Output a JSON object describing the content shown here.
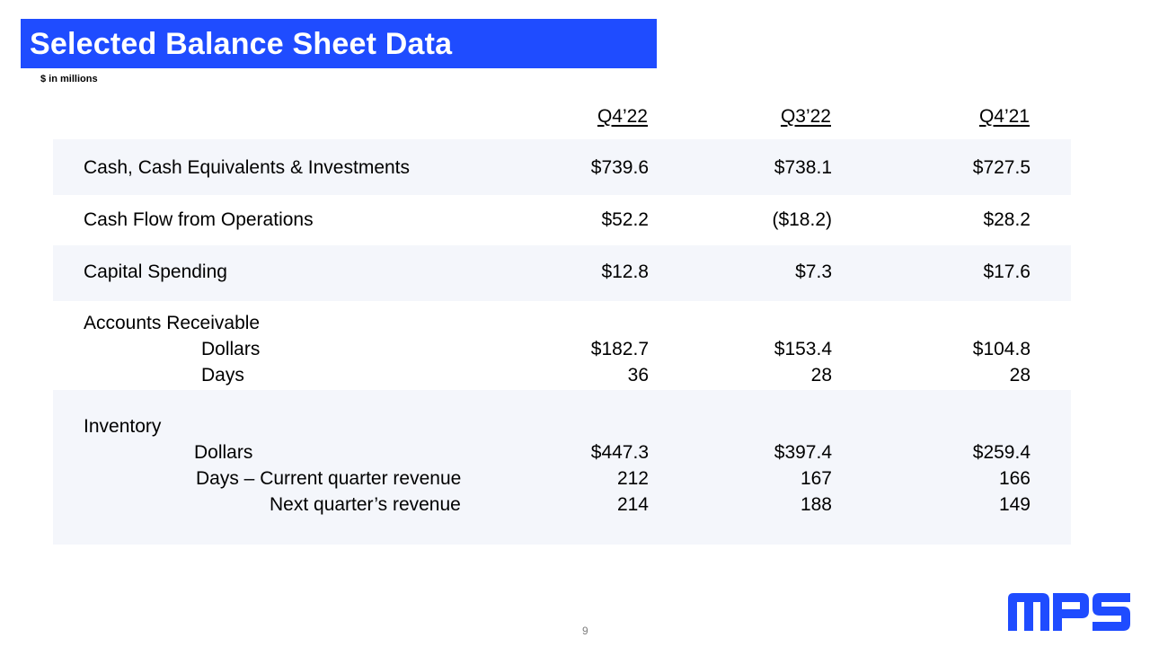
{
  "header": {
    "title": "Selected Balance Sheet Data",
    "subtitle": "$ in millions"
  },
  "columns": [
    "Q4’22",
    "Q3’22",
    "Q4’21"
  ],
  "rows": {
    "cash": {
      "label": "Cash, Cash Equivalents & Investments",
      "values": [
        "$739.6",
        "$738.1",
        "$727.5"
      ]
    },
    "cash_flow": {
      "label": "Cash Flow from Operations",
      "values": [
        "$52.2",
        "($18.2)",
        "$28.2"
      ]
    },
    "capex": {
      "label": "Capital Spending",
      "values": [
        "$12.8",
        "$7.3",
        "$17.6"
      ]
    },
    "ar": {
      "label": "Accounts Receivable",
      "dollars_label": "Dollars",
      "dollars": [
        "$182.7",
        "$153.4",
        "$104.8"
      ],
      "days_label": "Days",
      "days": [
        "36",
        "28",
        "28"
      ]
    },
    "inventory": {
      "label": "Inventory",
      "dollars_label": "Dollars",
      "dollars": [
        "$447.3",
        "$397.4",
        "$259.4"
      ],
      "days_current_label": "Days – Current quarter revenue",
      "days_current": [
        "212",
        "167",
        "166"
      ],
      "days_next_label": "Next quarter’s revenue",
      "days_next": [
        "214",
        "188",
        "149"
      ]
    }
  },
  "footer": {
    "page_number": "9",
    "logo_text": "MPS"
  },
  "colors": {
    "title_bar": "#1f4cff",
    "row_shade": "#f4f6fb",
    "logo": "#1f4cff"
  }
}
